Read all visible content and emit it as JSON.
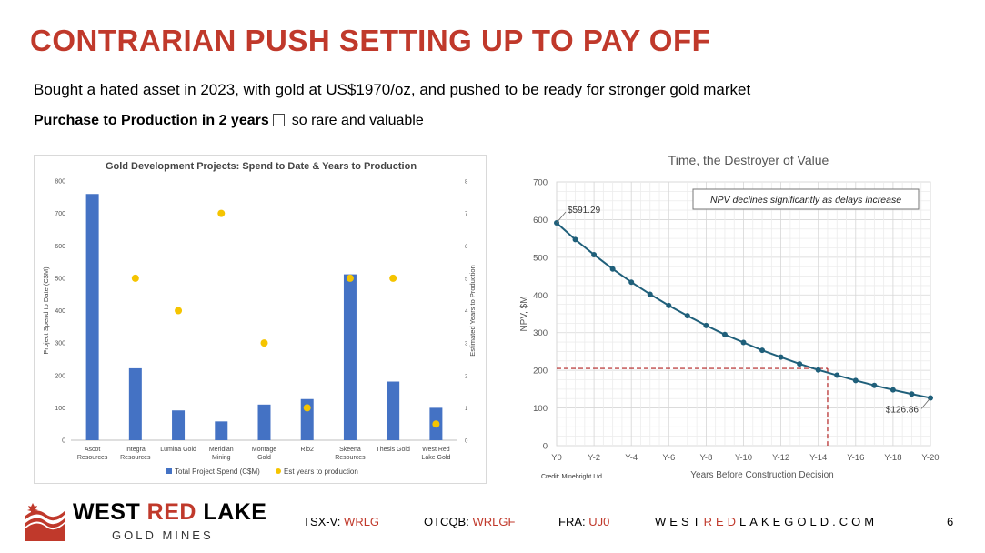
{
  "slide": {
    "title": "CONTRARIAN PUSH SETTING UP TO PAY OFF",
    "subtitle": "Bought a hated asset in 2023, with gold at US$1970/oz, and pushed to be ready for stronger gold market",
    "highlight_bold": "Purchase to Production in 2 years",
    "highlight_rest": "so rare and valuable",
    "page_number": "6"
  },
  "footer": {
    "logo_top_1": "WEST",
    "logo_top_2": "RED",
    "logo_top_3": "LAKE",
    "logo_bottom": "GOLD MINES",
    "tickers": [
      {
        "exchange": "TSX-V:",
        "symbol": "WRLG"
      },
      {
        "exchange": "OTCQB:",
        "symbol": "WRLGF"
      },
      {
        "exchange": "FRA:",
        "symbol": "UJ0"
      }
    ],
    "website_1": "WEST",
    "website_2": "RED",
    "website_3": "LAKEGOLD.COM"
  },
  "chart_data": [
    {
      "type": "bar",
      "title": "Gold Development Projects: Spend to Date & Years to Production",
      "ylabel": "Project Spend to Date (C$M)",
      "y2label": "Estimated Years to Production",
      "ylim": [
        0,
        800
      ],
      "y2lim": [
        0,
        8
      ],
      "yticks": [
        "0",
        "100",
        "200",
        "300",
        "400",
        "500",
        "600",
        "700",
        "800"
      ],
      "y2ticks": [
        "0",
        "1",
        "2",
        "3",
        "4",
        "5",
        "6",
        "7",
        "8"
      ],
      "categories": [
        [
          "Ascot",
          "Resources"
        ],
        [
          "Integra",
          "Resources"
        ],
        [
          "Lumina Gold"
        ],
        [
          "Meridian",
          "Mining"
        ],
        [
          "Montage",
          "Gold"
        ],
        [
          "Rio2"
        ],
        [
          "Skeena",
          "Resources"
        ],
        [
          "Thesis Gold"
        ],
        [
          "West Red",
          "Lake Gold"
        ]
      ],
      "series": [
        {
          "name": "Total Project Spend (C$M)",
          "kind": "bar",
          "axis": "left",
          "color": "#4472c4",
          "values": [
            760,
            222,
            92,
            58,
            110,
            127,
            512,
            181,
            100
          ]
        },
        {
          "name": "Est years to production",
          "kind": "scatter",
          "axis": "right",
          "color": "#f5c400",
          "values": [
            null,
            5,
            4,
            7,
            3,
            1,
            5,
            5,
            0.5
          ]
        }
      ],
      "legend": "bottom"
    },
    {
      "type": "line",
      "title": "Time, the Destroyer of Value",
      "xlabel": "Years Before Construction Decision",
      "ylabel": "NPV, $M",
      "ylim": [
        0,
        700
      ],
      "yticks": [
        "0",
        "100",
        "200",
        "300",
        "400",
        "500",
        "600",
        "700"
      ],
      "x_tick_labels": [
        "Y0",
        "Y-2",
        "Y-4",
        "Y-6",
        "Y-8",
        "Y-10",
        "Y-12",
        "Y-14",
        "Y-16",
        "Y-18",
        "Y-20"
      ],
      "x": [
        0,
        -1,
        -2,
        -3,
        -4,
        -5,
        -6,
        -7,
        -8,
        -9,
        -10,
        -11,
        -12,
        -13,
        -14,
        -15,
        -16,
        -17,
        -18,
        -19,
        -20
      ],
      "series": [
        {
          "name": "NPV",
          "color": "#1f5f7a",
          "values": [
            591.29,
            547,
            507,
            469,
            434,
            402,
            372,
            345,
            319,
            295,
            274,
            253,
            235,
            217,
            201,
            187,
            173,
            160,
            148,
            137,
            126.86
          ]
        }
      ],
      "annotations": {
        "callout": "NPV declines significantly as delays increase",
        "start_label": "$591.29",
        "end_label": "$126.86",
        "reference_y": 205,
        "reference_x": -14.5
      },
      "credit": "Credit: Minebright Ltd",
      "grid": true
    }
  ]
}
